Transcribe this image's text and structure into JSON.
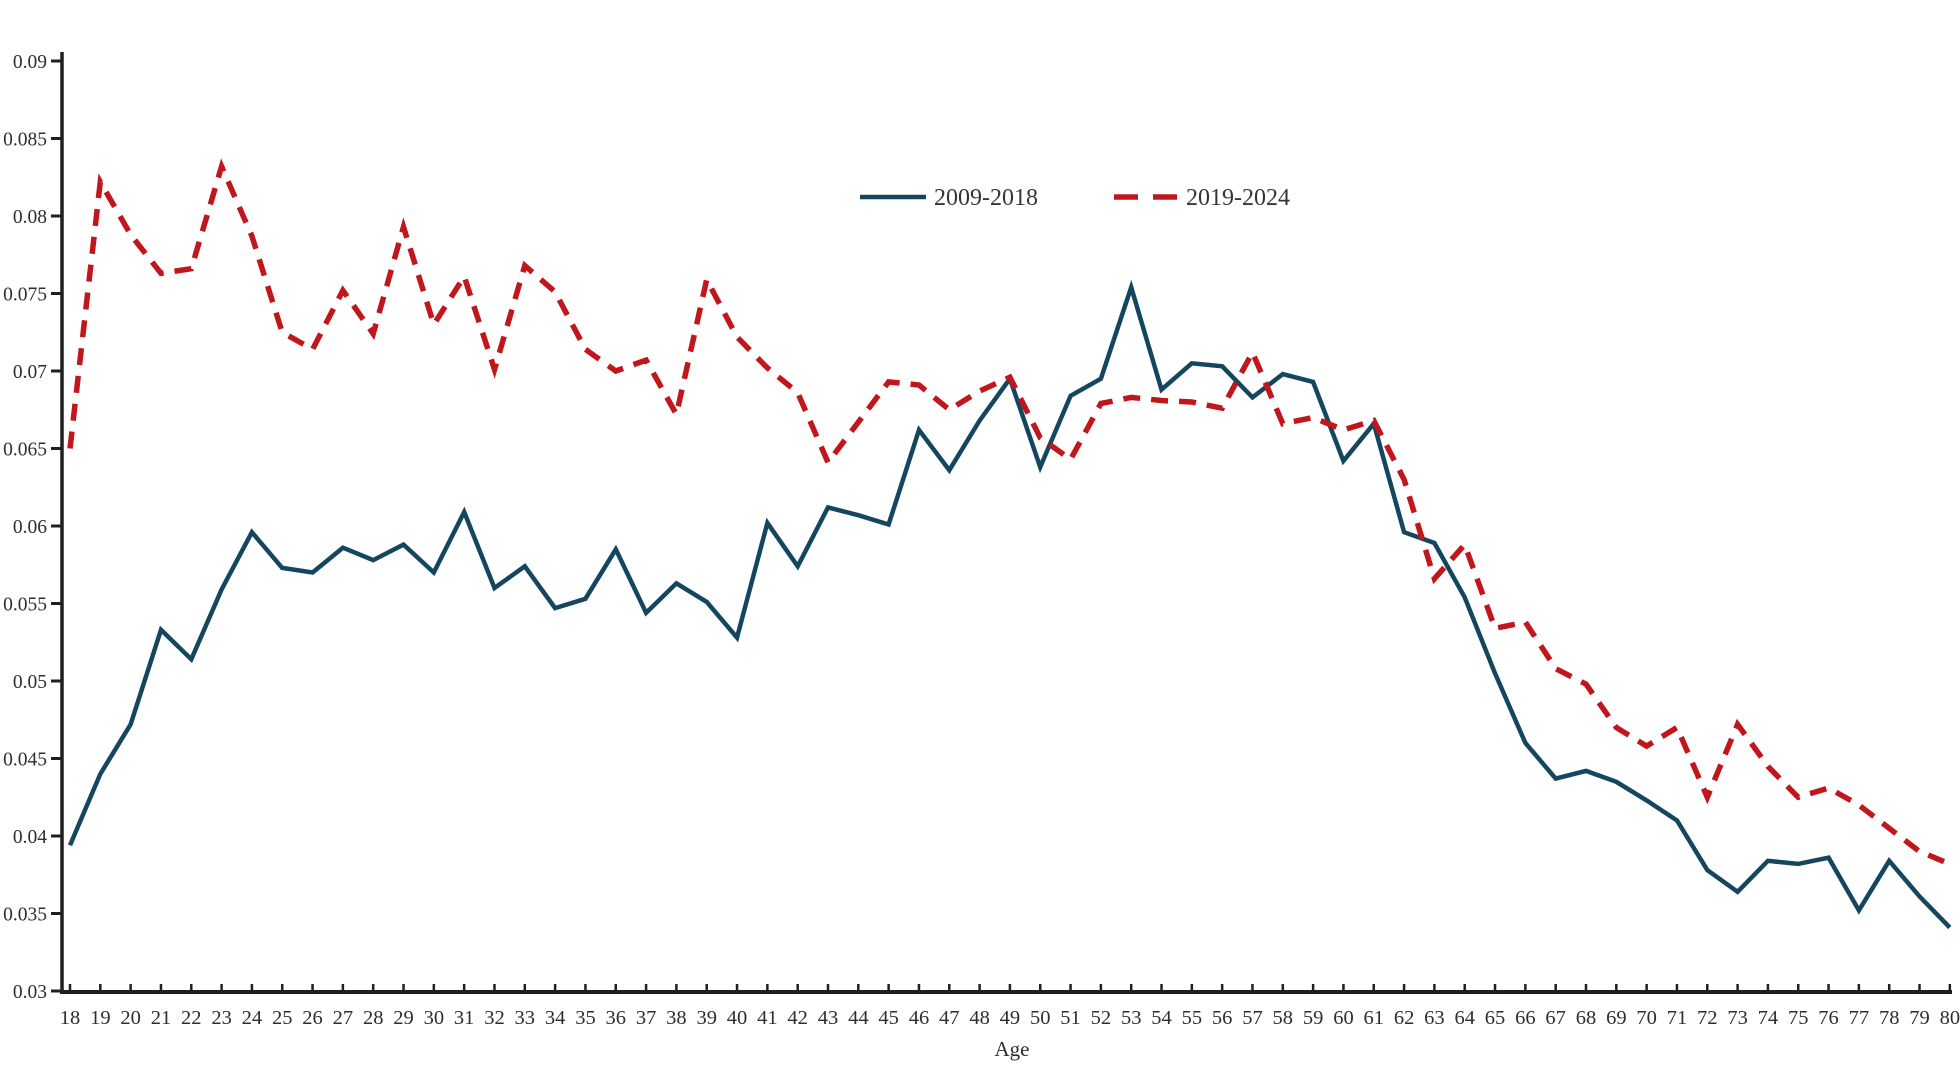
{
  "page": {
    "background": "#ffffff"
  },
  "chart_data": {
    "type": "line",
    "title": "",
    "xlabel": "Age",
    "ylabel": "",
    "xlim": [
      18,
      80
    ],
    "ylim": [
      0.03,
      0.09
    ],
    "grid": false,
    "legend_position": "top-center",
    "ytick_labels": [
      "0.03",
      "0.035",
      "0.04",
      "0.045",
      "0.05",
      "0.055",
      "0.06",
      "0.065",
      "0.07",
      "0.075",
      "0.08",
      "0.085",
      "0.09"
    ],
    "x": [
      18,
      19,
      20,
      21,
      22,
      23,
      24,
      25,
      26,
      27,
      28,
      29,
      30,
      31,
      32,
      33,
      34,
      35,
      36,
      37,
      38,
      39,
      40,
      41,
      42,
      43,
      44,
      45,
      46,
      47,
      48,
      49,
      50,
      51,
      52,
      53,
      54,
      55,
      56,
      57,
      58,
      59,
      60,
      61,
      62,
      63,
      64,
      65,
      66,
      67,
      68,
      69,
      70,
      71,
      72,
      73,
      74,
      75,
      76,
      77,
      78,
      79,
      80
    ],
    "series": [
      {
        "name": "2009-2018",
        "color": "#15465f",
        "line_style": "solid",
        "values": [
          0.0394,
          0.044,
          0.0472,
          0.0533,
          0.0514,
          0.0559,
          0.0596,
          0.0573,
          0.057,
          0.0586,
          0.0578,
          0.0588,
          0.057,
          0.0609,
          0.056,
          0.0574,
          0.0547,
          0.0553,
          0.0585,
          0.0544,
          0.0563,
          0.0551,
          0.0528,
          0.0602,
          0.0574,
          0.0612,
          0.0607,
          0.0601,
          0.0662,
          0.0636,
          0.0668,
          0.0695,
          0.0638,
          0.0684,
          0.0695,
          0.0754,
          0.0688,
          0.0705,
          0.0703,
          0.0683,
          0.0698,
          0.0693,
          0.0642,
          0.0666,
          0.0596,
          0.0589,
          0.0554,
          0.0505,
          0.046,
          0.0437,
          0.0442,
          0.0435,
          0.0423,
          0.041,
          0.0378,
          0.0364,
          0.0384,
          0.0382,
          0.0386,
          0.0352,
          0.0384,
          0.0361,
          0.0341
        ]
      },
      {
        "name": "2019-2024",
        "color": "#c0161c",
        "line_style": "dashed",
        "values": [
          0.065,
          0.0822,
          0.0788,
          0.0763,
          0.0766,
          0.0832,
          0.0787,
          0.0725,
          0.0714,
          0.0752,
          0.0724,
          0.0793,
          0.073,
          0.0761,
          0.0701,
          0.0768,
          0.0751,
          0.0714,
          0.07,
          0.0707,
          0.0672,
          0.0759,
          0.0722,
          0.0702,
          0.0686,
          0.0641,
          0.0667,
          0.0693,
          0.0691,
          0.0675,
          0.0687,
          0.0696,
          0.0657,
          0.0643,
          0.0679,
          0.0683,
          0.0681,
          0.068,
          0.0676,
          0.0712,
          0.0666,
          0.067,
          0.0662,
          0.0668,
          0.063,
          0.0566,
          0.0588,
          0.0534,
          0.0538,
          0.0508,
          0.0498,
          0.047,
          0.0458,
          0.047,
          0.0425,
          0.0472,
          0.0445,
          0.0425,
          0.0431,
          0.042,
          0.0405,
          0.039,
          0.0382
        ]
      }
    ],
    "style": {
      "axis_color": "#1f1f1f",
      "text_color": "#2e2e2e",
      "background": "#ffffff"
    }
  }
}
